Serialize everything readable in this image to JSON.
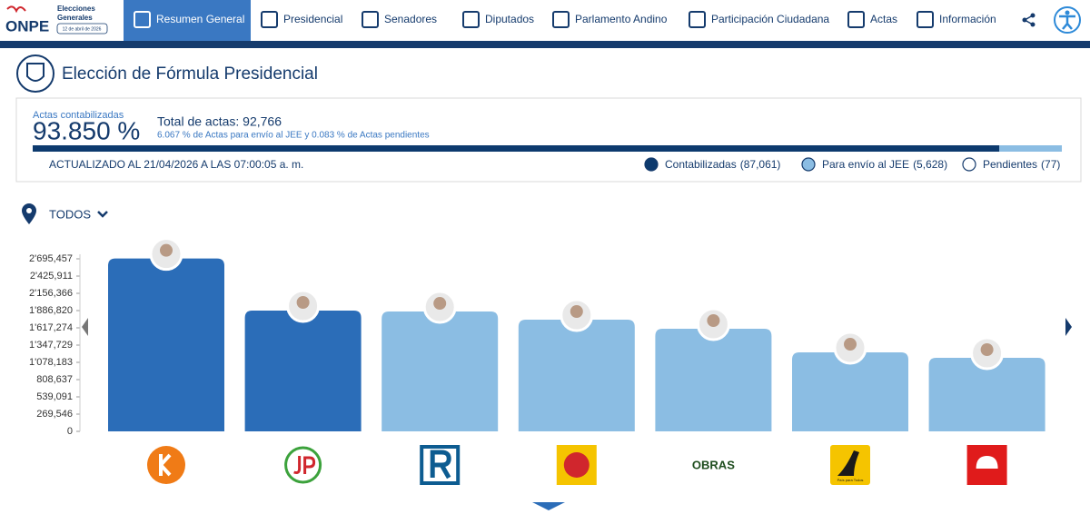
{
  "nav": {
    "logo": "ONPE",
    "logo_line1": "Elecciones",
    "logo_line2": "Generales",
    "logo_date": "12 de abril de 2026",
    "items": [
      "Resumen General",
      "Presidencial",
      "Senadores",
      "Diputados",
      "Parlamento Andino",
      "Participación Ciudadana",
      "Actas",
      "Información"
    ]
  },
  "header": {
    "title": "Elección de Fórmula Presidencial"
  },
  "summary": {
    "caption": "Actas contabilizadas",
    "percent": "93.850 %",
    "total": "Total de actas: 92,766",
    "detail": "6.067 % de Actas para envío al JEE y 0.083 % de Actas pendientes",
    "updated": "ACTUALIZADO AL 21/04/2026 A LAS 07:00:05 a. m.",
    "segments": [
      {
        "name": "Contabilizadas",
        "value": 87061,
        "label": "(87,061)",
        "color": "#0d3a6e"
      },
      {
        "name": "Para envío al JEE",
        "value": 5628,
        "label": "(5,628)",
        "color": "#8bbde3"
      },
      {
        "name": "Pendientes",
        "value": 77,
        "label": "(77)",
        "color": "#ffffff"
      }
    ]
  },
  "filter": {
    "label": "TODOS"
  },
  "chart_data": {
    "type": "bar",
    "categories": [
      null,
      null,
      null,
      null,
      "OBRAS",
      "País para Todos",
      null
    ],
    "values": [
      2700000,
      1886820,
      1872000,
      1745000,
      1603000,
      1234000,
      1149000
    ],
    "colors": [
      "#2b6db8",
      "#2b6db8",
      "#8bbde3",
      "#8bbde3",
      "#8bbde3",
      "#8bbde3",
      "#8bbde3"
    ],
    "ylim": [
      0,
      2695457
    ],
    "yticks": [
      0,
      {
        "value": 269546,
        "label": "269,546"
      },
      {
        "value": 539091,
        "label": "539,091"
      },
      {
        "value": 808637,
        "label": "808,637"
      },
      {
        "value": 1078183,
        "label": "1'078,183"
      },
      {
        "value": 1347729,
        "label": "1'347,729"
      },
      {
        "value": 1617274,
        "label": "1'617,274"
      },
      {
        "value": 1886820,
        "label": "1'886,820"
      },
      {
        "value": 2156366,
        "label": "2'156,366"
      },
      {
        "value": 2425911,
        "label": "2'425,911"
      },
      {
        "value": 2695457,
        "label": "2'695,457"
      }
    ]
  }
}
